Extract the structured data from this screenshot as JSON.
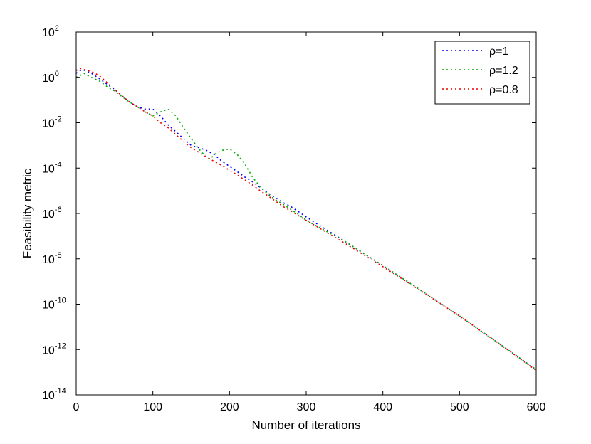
{
  "chart_data": {
    "type": "line",
    "title": "",
    "xlabel": "Number of iterations",
    "ylabel": "Feasibility metric",
    "xlim": [
      0,
      600
    ],
    "ylim_exponent": [
      -14,
      2
    ],
    "y_scale": "log",
    "grid": false,
    "legend_position": "top-right",
    "x_ticks": [
      "0",
      "100",
      "200",
      "300",
      "400",
      "500",
      "600"
    ],
    "y_tick_base": "10",
    "y_tick_exponents": [
      "2",
      "0",
      "-2",
      "-4",
      "-6",
      "-8",
      "-10",
      "-12",
      "-14"
    ],
    "series": [
      {
        "name": "ρ=1",
        "color": "#0000ff",
        "x": [
          0,
          5,
          10,
          20,
          30,
          40,
          50,
          60,
          70,
          80,
          90,
          100,
          110,
          120,
          130,
          140,
          150,
          160,
          170,
          180,
          190,
          200,
          210,
          220,
          230,
          240,
          250,
          260,
          270,
          280,
          290,
          300,
          350,
          400,
          450,
          500,
          550,
          600
        ],
        "y": [
          1.5,
          2.0,
          2.1,
          1.5,
          0.9,
          0.5,
          0.3,
          0.15,
          0.08,
          0.05,
          0.04,
          0.04,
          0.02,
          0.008,
          0.004,
          0.002,
          0.001,
          0.0008,
          0.0006,
          0.0004,
          0.0002,
          0.00012,
          7e-05,
          4e-05,
          2.5e-05,
          1.4e-05,
          8e-06,
          5e-06,
          3e-06,
          2e-06,
          1.2e-06,
          7e-07,
          6e-08,
          5e-09,
          4e-10,
          3e-11,
          2e-12,
          1.3e-13
        ]
      },
      {
        "name": "ρ=1.2",
        "color": "#00aa00",
        "x": [
          0,
          5,
          10,
          20,
          30,
          40,
          50,
          60,
          70,
          80,
          90,
          100,
          110,
          120,
          130,
          140,
          150,
          160,
          170,
          175,
          180,
          190,
          200,
          210,
          220,
          230,
          240,
          250,
          260,
          270,
          280,
          290,
          300,
          350,
          400,
          450,
          500,
          550,
          600
        ],
        "y": [
          1.0,
          1.2,
          1.5,
          1.0,
          0.7,
          0.4,
          0.25,
          0.14,
          0.08,
          0.05,
          0.03,
          0.02,
          0.03,
          0.04,
          0.02,
          0.006,
          0.002,
          0.0007,
          0.0003,
          0.00025,
          0.0004,
          0.0006,
          0.0007,
          0.0004,
          0.00015,
          4e-05,
          1.5e-05,
          7e-06,
          4e-06,
          2.5e-06,
          1.5e-06,
          9e-07,
          5e-07,
          6e-08,
          5e-09,
          4e-10,
          3e-11,
          2e-12,
          1.3e-13
        ]
      },
      {
        "name": "ρ=0.8",
        "color": "#ee0000",
        "x": [
          0,
          5,
          10,
          20,
          30,
          40,
          50,
          60,
          70,
          80,
          90,
          100,
          110,
          120,
          130,
          140,
          150,
          160,
          170,
          180,
          190,
          200,
          210,
          220,
          230,
          240,
          250,
          260,
          270,
          280,
          290,
          300,
          350,
          400,
          450,
          500,
          550,
          600
        ],
        "y": [
          2.0,
          2.5,
          2.2,
          1.8,
          1.2,
          0.6,
          0.3,
          0.15,
          0.08,
          0.05,
          0.03,
          0.02,
          0.01,
          0.006,
          0.003,
          0.0015,
          0.0008,
          0.0005,
          0.0003,
          0.0002,
          0.00013,
          8e-05,
          5e-05,
          3e-05,
          1.8e-05,
          1e-05,
          6e-06,
          3.5e-06,
          2e-06,
          1.3e-06,
          8e-07,
          5e-07,
          5e-08,
          4.5e-09,
          3.8e-10,
          3e-11,
          2e-12,
          1.2e-13
        ]
      }
    ]
  }
}
